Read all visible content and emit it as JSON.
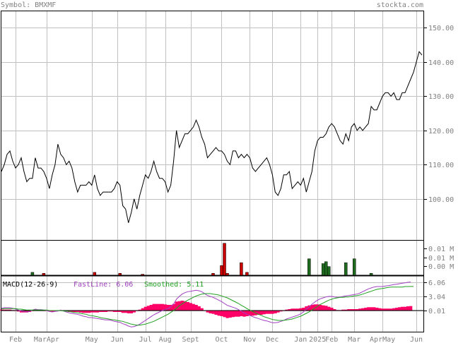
{
  "header": {
    "symbol_label": "Symbol: BMXMF",
    "site": "stockta.com"
  },
  "macd": {
    "label": "MACD(12-26-9)",
    "fast_label": "FastLine: 6.06",
    "smooth_label": "Smoothed: 5.11"
  },
  "colors": {
    "grid": "#c0c0c0",
    "frame": "#000000",
    "text": "#808080",
    "price_line": "#000000",
    "volume_up": "#1f6b1f",
    "volume_down": "#cc0000",
    "macd_fast": "#a040c0",
    "macd_smooth": "#20a020",
    "macd_hist": "#ff0066",
    "fast_label_color": "#a040c0",
    "smooth_label_color": "#20a020"
  },
  "chart_data": {
    "type": "line",
    "x_tick_labels": [
      "Feb",
      "MarApr",
      "May",
      "Jun",
      "Jul",
      "Aug",
      "Sept",
      "Oct",
      "Nov",
      "Dec",
      "Jan",
      "2025",
      "Feb",
      "Mar",
      "AprMay",
      "Jun"
    ],
    "x_tick_index": [
      5,
      16,
      32,
      41,
      51,
      58,
      67,
      78,
      88,
      96,
      106,
      112,
      117,
      125,
      135,
      147
    ],
    "price": {
      "y_ticks": [
        100,
        110,
        120,
        130,
        140,
        150
      ],
      "y_tick_labels": [
        "100.00",
        "110.00",
        "120.00",
        "130.00",
        "140.00",
        "150.00"
      ],
      "ylim": [
        88,
        155
      ],
      "values": [
        108,
        110,
        113,
        114,
        111,
        109,
        110,
        112,
        108,
        105,
        106,
        106,
        112,
        109,
        109,
        108,
        106,
        103,
        107,
        110,
        116,
        113,
        112,
        110,
        111,
        109,
        105,
        102,
        104,
        104,
        104,
        105,
        104,
        107,
        103,
        101,
        102,
        102,
        102,
        102,
        103,
        105,
        104,
        98,
        97,
        93,
        96,
        100,
        97,
        101,
        104,
        107,
        106,
        108,
        111,
        108,
        106,
        106,
        105,
        102,
        104,
        111,
        120,
        115,
        117,
        119,
        119,
        120,
        121,
        123,
        121,
        118,
        116,
        112,
        113,
        114,
        115,
        114,
        114,
        113,
        111,
        110,
        114,
        114,
        112,
        113,
        112,
        113,
        112,
        109,
        108,
        109,
        110,
        111,
        112,
        110,
        107,
        102,
        101,
        103,
        107,
        107,
        108,
        103,
        104,
        105,
        104,
        106,
        102,
        105,
        108,
        114,
        117,
        118,
        118,
        119,
        121,
        122,
        121,
        119,
        117,
        116,
        119,
        117,
        121,
        122,
        120,
        121,
        120,
        121,
        122,
        127,
        126,
        126,
        128,
        130,
        131,
        131,
        130,
        131,
        129,
        129,
        131,
        131,
        133,
        135,
        137,
        140,
        143,
        142
      ],
      "last": 142
    },
    "volume": {
      "y_tick_labels": [
        "0.01 M",
        "0.01 M",
        "0.00 M"
      ],
      "bars": [
        {
          "i": 11,
          "v": 0.003,
          "dir": "up"
        },
        {
          "i": 15,
          "v": 0.002,
          "dir": "down"
        },
        {
          "i": 33,
          "v": 0.003,
          "dir": "down"
        },
        {
          "i": 42,
          "v": 0.002,
          "dir": "down"
        },
        {
          "i": 50,
          "v": 0.001,
          "dir": "down"
        },
        {
          "i": 75,
          "v": 0.002,
          "dir": "down"
        },
        {
          "i": 78,
          "v": 0.01,
          "dir": "down"
        },
        {
          "i": 79,
          "v": 0.033,
          "dir": "down"
        },
        {
          "i": 80,
          "v": 0.002,
          "dir": "down"
        },
        {
          "i": 85,
          "v": 0.013,
          "dir": "down"
        },
        {
          "i": 87,
          "v": 0.003,
          "dir": "down"
        },
        {
          "i": 109,
          "v": 0.017,
          "dir": "up"
        },
        {
          "i": 114,
          "v": 0.012,
          "dir": "up"
        },
        {
          "i": 115,
          "v": 0.014,
          "dir": "up"
        },
        {
          "i": 116,
          "v": 0.009,
          "dir": "up"
        },
        {
          "i": 122,
          "v": 0.013,
          "dir": "up"
        },
        {
          "i": 125,
          "v": 0.017,
          "dir": "up"
        },
        {
          "i": 131,
          "v": 0.002,
          "dir": "up"
        }
      ],
      "vmax": 0.035
    },
    "macd_panel": {
      "y_ticks": [
        0.01,
        3.04,
        6.06
      ],
      "y_tick_labels": [
        "0.01",
        "3.04",
        "6.06"
      ],
      "ylim": [
        -4.5,
        7.5
      ],
      "fast": [
        0.5,
        0.6,
        0.6,
        0.6,
        0.5,
        0.3,
        0.1,
        -0.1,
        -0.2,
        -0.3,
        -0.2,
        0.1,
        0.3,
        0.2,
        0.2,
        0.1,
        0.0,
        -0.2,
        -0.3,
        -0.2,
        -0.1,
        0.1,
        -0.1,
        -0.3,
        -0.5,
        -0.6,
        -0.7,
        -0.8,
        -1.0,
        -1.2,
        -1.3,
        -1.5,
        -1.5,
        -1.6,
        -1.7,
        -1.8,
        -1.9,
        -2.0,
        -2.0,
        -2.1,
        -2.3,
        -2.4,
        -2.5,
        -2.8,
        -3.0,
        -3.3,
        -3.5,
        -3.4,
        -3.2,
        -2.9,
        -2.5,
        -2.1,
        -1.7,
        -1.3,
        -0.9,
        -0.6,
        -0.3,
        0.0,
        0.2,
        0.4,
        0.8,
        1.4,
        2.4,
        3.0,
        3.5,
        3.8,
        4.0,
        4.1,
        4.2,
        4.3,
        4.2,
        4.0,
        3.6,
        3.2,
        3.0,
        2.8,
        2.5,
        2.2,
        1.9,
        1.5,
        1.1,
        0.9,
        0.7,
        0.5,
        0.2,
        -0.1,
        -0.5,
        -0.8,
        -1.0,
        -1.3,
        -1.5,
        -1.7,
        -1.9,
        -2.1,
        -2.2,
        -2.4,
        -2.6,
        -2.6,
        -2.5,
        -2.3,
        -2.1,
        -1.8,
        -1.6,
        -1.4,
        -1.2,
        -1.0,
        -0.7,
        -0.3,
        0.3,
        0.8,
        1.3,
        1.8,
        2.2,
        2.5,
        2.7,
        2.9,
        3.0,
        3.0,
        2.9,
        2.8,
        2.9,
        3.0,
        3.1,
        3.2,
        3.3,
        3.4,
        3.5,
        3.7,
        4.0,
        4.3,
        4.6,
        4.8,
        5.0,
        5.1,
        5.1,
        5.1,
        5.2,
        5.3,
        5.4,
        5.5,
        5.6,
        5.7,
        5.8,
        5.9,
        6.0,
        6.06
      ],
      "smooth": [
        0.3,
        0.4,
        0.4,
        0.4,
        0.4,
        0.4,
        0.3,
        0.3,
        0.2,
        0.1,
        0.1,
        0.1,
        0.1,
        0.1,
        0.1,
        0.1,
        0.1,
        0.0,
        0.0,
        0.0,
        0.0,
        0.0,
        -0.1,
        -0.1,
        -0.2,
        -0.3,
        -0.4,
        -0.5,
        -0.6,
        -0.7,
        -0.8,
        -1.0,
        -1.1,
        -1.2,
        -1.3,
        -1.5,
        -1.6,
        -1.7,
        -1.8,
        -1.9,
        -2.0,
        -2.1,
        -2.2,
        -2.3,
        -2.5,
        -2.7,
        -2.9,
        -3.0,
        -3.1,
        -3.1,
        -3.0,
        -2.9,
        -2.7,
        -2.5,
        -2.3,
        -2.0,
        -1.7,
        -1.4,
        -1.1,
        -0.8,
        -0.4,
        0.0,
        0.5,
        1.0,
        1.4,
        1.8,
        2.2,
        2.5,
        2.8,
        3.1,
        3.3,
        3.5,
        3.6,
        3.6,
        3.6,
        3.5,
        3.4,
        3.3,
        3.1,
        2.9,
        2.7,
        2.4,
        2.1,
        1.8,
        1.5,
        1.1,
        0.8,
        0.4,
        0.1,
        -0.2,
        -0.5,
        -0.8,
        -1.0,
        -1.3,
        -1.5,
        -1.7,
        -1.9,
        -2.0,
        -2.1,
        -2.1,
        -2.1,
        -2.0,
        -1.9,
        -1.8,
        -1.6,
        -1.4,
        -1.2,
        -0.9,
        -0.6,
        -0.3,
        0.1,
        0.5,
        0.9,
        1.3,
        1.6,
        1.9,
        2.2,
        2.4,
        2.6,
        2.7,
        2.8,
        2.8,
        2.9,
        2.9,
        3.0,
        3.1,
        3.2,
        3.3,
        3.5,
        3.7,
        3.9,
        4.1,
        4.3,
        4.5,
        4.6,
        4.7,
        4.8,
        4.9,
        5.0,
        5.0,
        5.0,
        5.0,
        5.0,
        5.1,
        5.1,
        5.11,
        5.11
      ]
    }
  }
}
